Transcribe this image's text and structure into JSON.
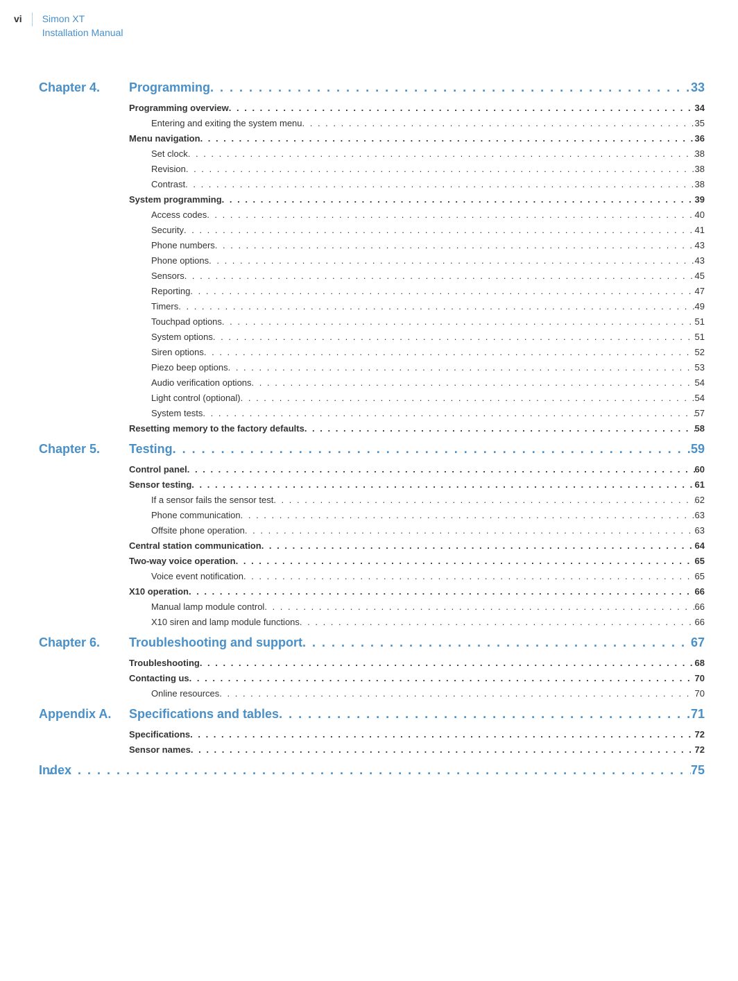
{
  "header": {
    "page_roman": "vi",
    "title_line1": "Simon XT",
    "title_line2": "Installation Manual"
  },
  "colors": {
    "brand": "#4a90c8",
    "text": "#333333",
    "background": "#ffffff",
    "rule": "#b0d0e8"
  },
  "typography": {
    "chapter_fontsize": 18,
    "section_fontsize": 13,
    "header_fontsize": 14
  },
  "toc": [
    {
      "type": "chapter",
      "label": "Chapter 4.",
      "title": "Programming",
      "page": "33"
    },
    {
      "type": "section",
      "title": "Programming overview",
      "page": "34"
    },
    {
      "type": "sub",
      "title": "Entering and exiting the system menu",
      "page": "35"
    },
    {
      "type": "section",
      "title": "Menu navigation",
      "page": "36"
    },
    {
      "type": "sub",
      "title": "Set clock",
      "page": "38"
    },
    {
      "type": "sub",
      "title": "Revision",
      "page": "38"
    },
    {
      "type": "sub",
      "title": "Contrast",
      "page": "38"
    },
    {
      "type": "section",
      "title": "System programming",
      "page": "39"
    },
    {
      "type": "sub",
      "title": "Access codes",
      "page": "40"
    },
    {
      "type": "sub",
      "title": "Security",
      "page": "41"
    },
    {
      "type": "sub",
      "title": "Phone numbers",
      "page": "43"
    },
    {
      "type": "sub",
      "title": "Phone options",
      "page": "43"
    },
    {
      "type": "sub",
      "title": "Sensors",
      "page": "45"
    },
    {
      "type": "sub",
      "title": "Reporting",
      "page": "47"
    },
    {
      "type": "sub",
      "title": "Timers",
      "page": "49"
    },
    {
      "type": "sub",
      "title": "Touchpad options",
      "page": "51"
    },
    {
      "type": "sub",
      "title": "System options",
      "page": "51"
    },
    {
      "type": "sub",
      "title": "Siren options",
      "page": "52"
    },
    {
      "type": "sub",
      "title": "Piezo beep options",
      "page": "53"
    },
    {
      "type": "sub",
      "title": "Audio verification options",
      "page": "54"
    },
    {
      "type": "sub",
      "title": "Light control (optional)",
      "page": "54"
    },
    {
      "type": "sub",
      "title": "System tests",
      "page": "57"
    },
    {
      "type": "section",
      "title": "Resetting memory to the factory defaults",
      "page": "58"
    },
    {
      "type": "chapter",
      "label": "Chapter 5.",
      "title": "Testing",
      "page": "59"
    },
    {
      "type": "section",
      "title": "Control panel",
      "page": "60"
    },
    {
      "type": "section",
      "title": "Sensor testing",
      "page": "61"
    },
    {
      "type": "sub",
      "title": "If a sensor fails the sensor test",
      "page": "62"
    },
    {
      "type": "sub",
      "title": "Phone communication",
      "page": "63"
    },
    {
      "type": "sub",
      "title": "Offsite phone operation",
      "page": "63"
    },
    {
      "type": "section",
      "title": "Central station communication",
      "page": "64"
    },
    {
      "type": "section",
      "title": "Two-way voice operation",
      "page": "65"
    },
    {
      "type": "sub",
      "title": "Voice event notification",
      "page": "65"
    },
    {
      "type": "section",
      "title": "X10 operation",
      "page": "66"
    },
    {
      "type": "sub",
      "title": "Manual lamp module control",
      "page": "66"
    },
    {
      "type": "sub",
      "title": "X10 siren and lamp module functions",
      "page": "66"
    },
    {
      "type": "chapter",
      "label": "Chapter 6.",
      "title": "Troubleshooting and support",
      "page": "67"
    },
    {
      "type": "section",
      "title": "Troubleshooting",
      "page": "68"
    },
    {
      "type": "section",
      "title": "Contacting us",
      "page": "70"
    },
    {
      "type": "sub",
      "title": "Online resources",
      "page": "70"
    },
    {
      "type": "chapter",
      "label": "Appendix A.",
      "title": "Specifications and tables",
      "page": "71"
    },
    {
      "type": "section",
      "title": "Specifications",
      "page": "72"
    },
    {
      "type": "section",
      "title": "Sensor names",
      "page": "72"
    },
    {
      "type": "chapter",
      "label": "Index",
      "title": "",
      "page": "75",
      "full": true
    }
  ]
}
